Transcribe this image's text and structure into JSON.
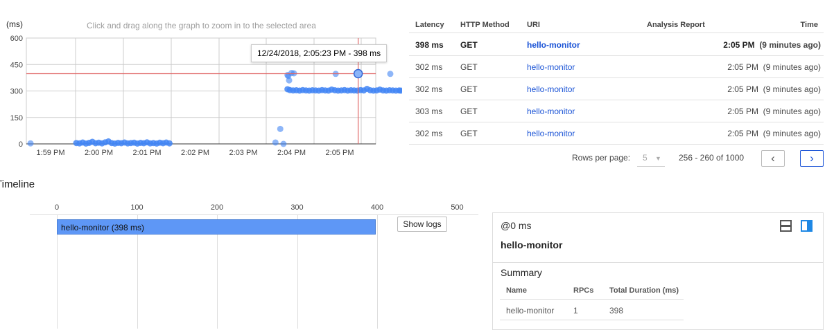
{
  "chart": {
    "hint": "Click and drag along the graph to zoom in to the selected area",
    "y_unit": "(ms)",
    "tooltip": "12/24/2018, 2:05:23 PM - 398 ms",
    "colors": {
      "points": "#4285f4",
      "crosshair": "#e06666"
    }
  },
  "chart_data": {
    "type": "scatter",
    "xlabel": "",
    "ylabel": "(ms)",
    "ylim": [
      0,
      600
    ],
    "yticks": [
      "0",
      "150",
      "300",
      "450",
      "600"
    ],
    "xticks": [
      "1:59 PM",
      "2:00 PM",
      "2:01 PM",
      "2:02 PM",
      "2:03 PM",
      "2:04 PM",
      "2:05 PM"
    ],
    "highlight": {
      "time": "14:05:23",
      "ms": 398
    },
    "points": [
      [
        "13:58:35",
        3
      ],
      [
        "13:59:32",
        5
      ],
      [
        "13:59:36",
        3
      ],
      [
        "13:59:40",
        8
      ],
      [
        "13:59:44",
        2
      ],
      [
        "13:59:48",
        6
      ],
      [
        "13:59:52",
        12
      ],
      [
        "13:59:56",
        4
      ],
      [
        "14:00:00",
        7
      ],
      [
        "14:00:04",
        3
      ],
      [
        "14:00:08",
        9
      ],
      [
        "14:00:12",
        14
      ],
      [
        "14:00:16",
        5
      ],
      [
        "14:00:20",
        2
      ],
      [
        "14:00:24",
        6
      ],
      [
        "14:00:28",
        4
      ],
      [
        "14:00:32",
        8
      ],
      [
        "14:00:36",
        3
      ],
      [
        "14:00:40",
        5
      ],
      [
        "14:00:44",
        7
      ],
      [
        "14:00:48",
        2
      ],
      [
        "14:00:52",
        6
      ],
      [
        "14:00:56",
        4
      ],
      [
        "14:01:00",
        9
      ],
      [
        "14:01:04",
        3
      ],
      [
        "14:01:08",
        5
      ],
      [
        "14:01:12",
        2
      ],
      [
        "14:01:16",
        7
      ],
      [
        "14:01:20",
        4
      ],
      [
        "14:01:24",
        8
      ],
      [
        "14:01:28",
        3
      ],
      [
        "14:03:40",
        8
      ],
      [
        "14:03:46",
        85
      ],
      [
        "14:03:50",
        0
      ],
      [
        "14:03:55",
        390
      ],
      [
        "14:03:56",
        385
      ],
      [
        "14:03:57",
        360
      ],
      [
        "14:04:00",
        402
      ],
      [
        "14:04:03",
        400
      ],
      [
        "14:04:55",
        397
      ],
      [
        "14:06:03",
        397
      ],
      [
        "14:03:55",
        310
      ],
      [
        "14:03:58",
        305
      ],
      [
        "14:04:02",
        303
      ],
      [
        "14:04:06",
        304
      ],
      [
        "14:04:10",
        302
      ],
      [
        "14:04:14",
        305
      ],
      [
        "14:04:18",
        303
      ],
      [
        "14:04:22",
        302
      ],
      [
        "14:04:26",
        304
      ],
      [
        "14:04:30",
        303
      ],
      [
        "14:04:34",
        302
      ],
      [
        "14:04:38",
        305
      ],
      [
        "14:04:42",
        303
      ],
      [
        "14:04:46",
        302
      ],
      [
        "14:04:50",
        308
      ],
      [
        "14:04:54",
        304
      ],
      [
        "14:04:58",
        302
      ],
      [
        "14:05:02",
        303
      ],
      [
        "14:05:06",
        305
      ],
      [
        "14:05:10",
        302
      ],
      [
        "14:05:14",
        304
      ],
      [
        "14:05:18",
        303
      ],
      [
        "14:05:22",
        302
      ],
      [
        "14:05:26",
        305
      ],
      [
        "14:05:30",
        303
      ],
      [
        "14:05:34",
        312
      ],
      [
        "14:05:38",
        304
      ],
      [
        "14:05:42",
        302
      ],
      [
        "14:05:46",
        303
      ],
      [
        "14:05:50",
        308
      ],
      [
        "14:05:54",
        303
      ],
      [
        "14:05:58",
        302
      ],
      [
        "14:06:02",
        304
      ],
      [
        "14:06:06",
        303
      ],
      [
        "14:06:10",
        302
      ],
      [
        "14:06:14",
        303
      ],
      [
        "14:06:16",
        302
      ]
    ]
  },
  "table": {
    "headers": [
      "Latency",
      "HTTP Method",
      "URI",
      "Analysis Report",
      "Time"
    ],
    "rows": [
      {
        "latency": "398 ms",
        "method": "GET",
        "uri": "hello-monitor",
        "time": "2:05 PM",
        "ago": "(9 minutes ago)"
      },
      {
        "latency": "302 ms",
        "method": "GET",
        "uri": "hello-monitor",
        "time": "2:05 PM",
        "ago": "(9 minutes ago)"
      },
      {
        "latency": "302 ms",
        "method": "GET",
        "uri": "hello-monitor",
        "time": "2:05 PM",
        "ago": "(9 minutes ago)"
      },
      {
        "latency": "303 ms",
        "method": "GET",
        "uri": "hello-monitor",
        "time": "2:05 PM",
        "ago": "(9 minutes ago)"
      },
      {
        "latency": "302 ms",
        "method": "GET",
        "uri": "hello-monitor",
        "time": "2:05 PM",
        "ago": "(9 minutes ago)"
      }
    ],
    "rows_per_page_label": "Rows per page:",
    "rows_per_page": "5",
    "range": "256 - 260 of 1000"
  },
  "timeline": {
    "title": "Timeline",
    "ticks": [
      "0",
      "100",
      "200",
      "300",
      "400",
      "500"
    ],
    "span": {
      "label": "hello-monitor (398 ms)",
      "start": 0,
      "duration": 398
    },
    "show_logs": "Show logs"
  },
  "detail": {
    "offset": "@0 ms",
    "name": "hello-monitor",
    "summary_title": "Summary",
    "headers": [
      "Name",
      "RPCs",
      "Total Duration (ms)"
    ],
    "row": [
      "hello-monitor",
      "1",
      "398"
    ]
  }
}
